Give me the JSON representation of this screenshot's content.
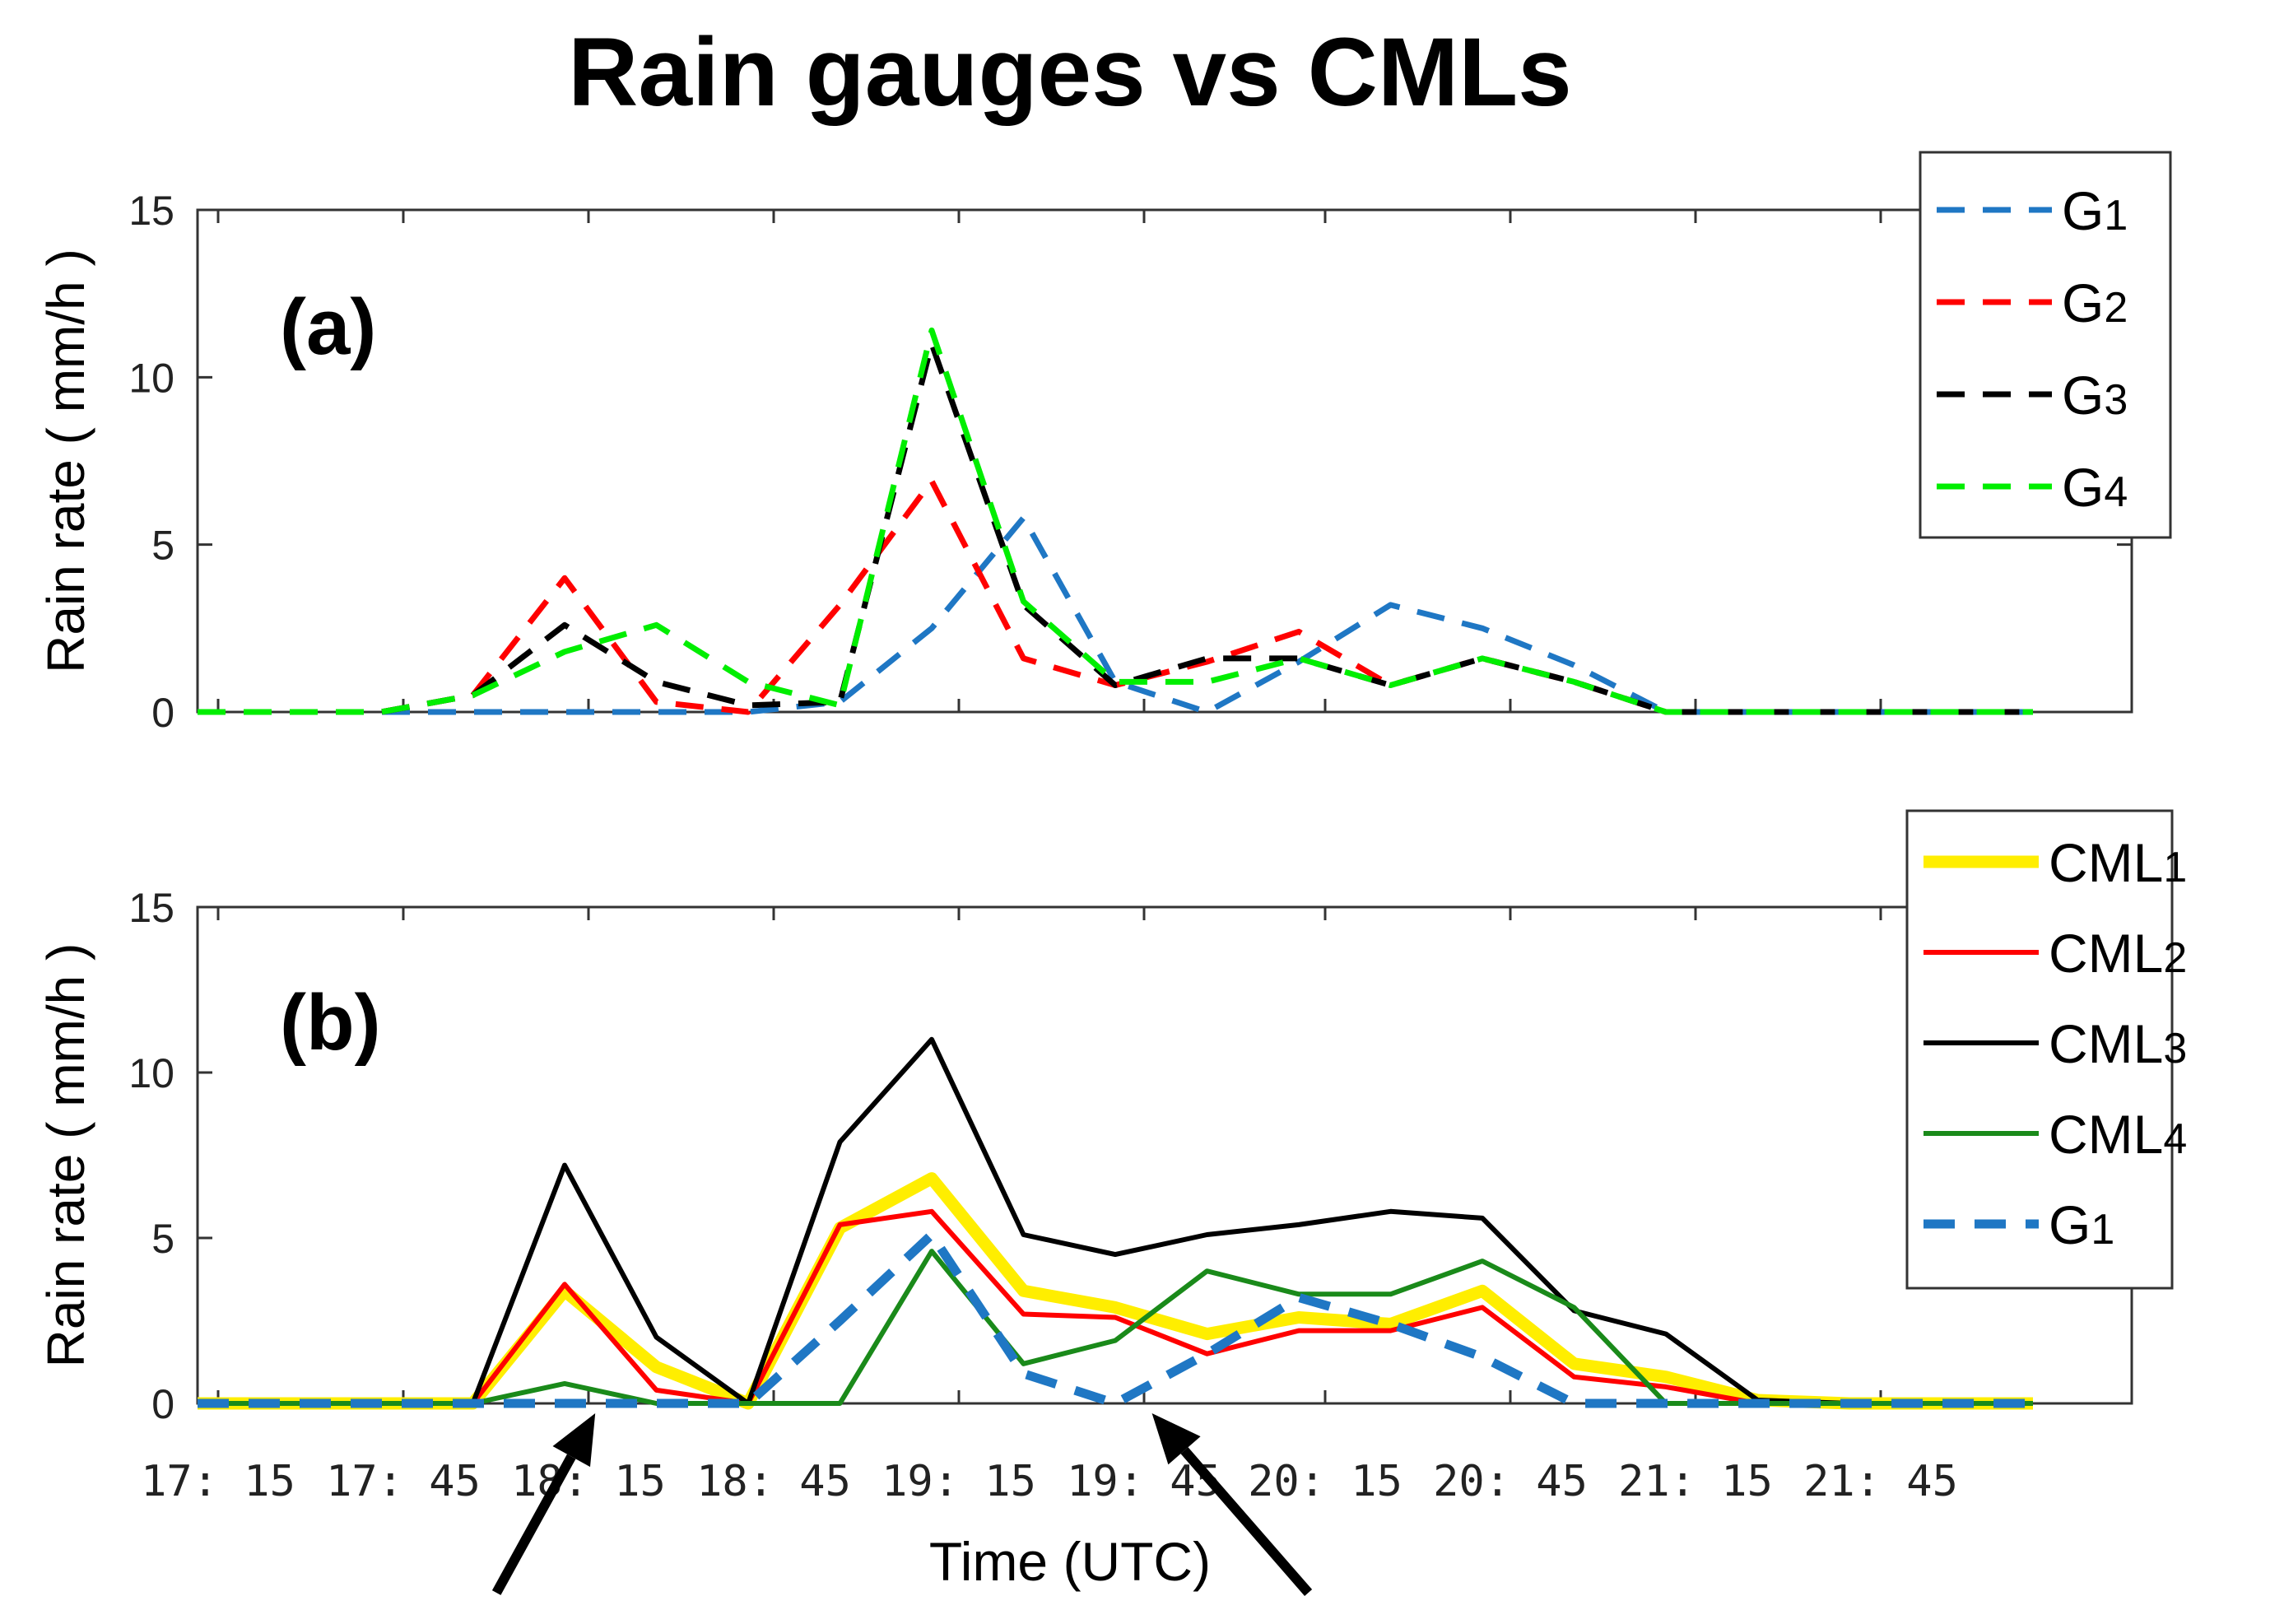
{
  "title": "Rain gauges vs CMLs",
  "colors": {
    "G1": "#1f77c4",
    "G2": "#ff0000",
    "G3": "#000000",
    "G4": "#00ee00",
    "CML1": "#ffee00",
    "CML2": "#ff0000",
    "CML3": "#000000",
    "CML4": "#1a8a1a",
    "arrow": "#000000"
  },
  "chart_data": [
    {
      "type": "line",
      "panel_label": "(a)",
      "title": "",
      "xlabel": "",
      "ylabel": "Rain rate ( mm/h )",
      "ylim": [
        0,
        15
      ],
      "yticks": [
        0,
        5,
        10,
        15
      ],
      "xticks": [
        "17: 15",
        "17: 45",
        "18: 15",
        "18: 45",
        "19: 15",
        "19: 45",
        "20: 15",
        "20: 45",
        "21: 15",
        "21: 45"
      ],
      "legend_position": "top-right",
      "x": [
        "17:00",
        "17:15",
        "17:30",
        "17:45",
        "18:00",
        "18:15",
        "18:30",
        "18:45",
        "19:00",
        "19:15",
        "19:30",
        "19:45",
        "20:00",
        "20:15",
        "20:30",
        "20:45",
        "21:00",
        "21:15",
        "21:30",
        "21:45",
        "22:00"
      ],
      "series": [
        {
          "name": "G1",
          "label_main": "G",
          "label_sub": "1",
          "style": "dashed",
          "values": [
            0,
            0,
            0,
            0,
            0,
            0,
            0,
            0.3,
            2.5,
            5.8,
            0.9,
            0,
            1.5,
            3.2,
            2.5,
            1.4,
            0,
            0,
            0,
            0,
            0
          ]
        },
        {
          "name": "G2",
          "label_main": "G",
          "label_sub": "2",
          "style": "dashed",
          "values": [
            0,
            0,
            0,
            0.5,
            4,
            0.3,
            0,
            3.2,
            6.9,
            1.6,
            0.8,
            1.5,
            2.4,
            0.8,
            1.6,
            0.9,
            0,
            0,
            0,
            0,
            0
          ]
        },
        {
          "name": "G3",
          "label_main": "G",
          "label_sub": "3",
          "style": "dashed",
          "values": [
            0,
            0,
            0,
            0.5,
            2.6,
            0.9,
            0.2,
            0.3,
            11,
            3.2,
            0.8,
            1.6,
            1.6,
            0.8,
            1.6,
            0.9,
            0,
            0,
            0,
            0,
            0
          ]
        },
        {
          "name": "G4",
          "label_main": "G",
          "label_sub": "4",
          "style": "dashed",
          "values": [
            0,
            0,
            0,
            0.5,
            1.8,
            2.6,
            0.9,
            0.2,
            11.4,
            3.3,
            0.9,
            0.9,
            1.6,
            0.8,
            1.6,
            0.9,
            0,
            0,
            0,
            0,
            0
          ]
        }
      ]
    },
    {
      "type": "line",
      "panel_label": "(b)",
      "title": "",
      "xlabel": "Time (UTC)",
      "ylabel": "Rain rate ( mm/h )",
      "ylim": [
        0,
        15
      ],
      "yticks": [
        0,
        5,
        10,
        15
      ],
      "xticks": [
        "17: 15",
        "17: 45",
        "18: 15",
        "18: 45",
        "19: 15",
        "19: 45",
        "20: 15",
        "20: 45",
        "21: 15",
        "21: 45"
      ],
      "legend_position": "top-right",
      "x": [
        "17:00",
        "17:15",
        "17:30",
        "17:45",
        "18:00",
        "18:15",
        "18:30",
        "18:45",
        "19:00",
        "19:15",
        "19:30",
        "19:45",
        "20:00",
        "20:15",
        "20:30",
        "20:45",
        "21:00",
        "21:15",
        "21:30",
        "21:45",
        "22:00"
      ],
      "series": [
        {
          "name": "CML1",
          "label_main": "CML",
          "label_sub": "1",
          "style": "solid-thick",
          "values": [
            0,
            0,
            0,
            0,
            3.4,
            1.1,
            0,
            5.3,
            6.8,
            3.4,
            2.9,
            2.1,
            2.6,
            2.4,
            3.4,
            1.2,
            0.8,
            0.1,
            0,
            0,
            0
          ]
        },
        {
          "name": "CML2",
          "label_main": "CML",
          "label_sub": "2",
          "style": "solid",
          "values": [
            0,
            0,
            0,
            0,
            3.6,
            0.4,
            0,
            5.4,
            5.8,
            2.7,
            2.6,
            1.5,
            2.2,
            2.2,
            2.9,
            0.8,
            0.5,
            0,
            0,
            0,
            0
          ]
        },
        {
          "name": "CML3",
          "label_main": "CML",
          "label_sub": "3",
          "style": "solid",
          "values": [
            0,
            0,
            0,
            0,
            7.2,
            2,
            0,
            7.9,
            11,
            5.1,
            4.5,
            5.1,
            5.4,
            5.8,
            5.6,
            2.8,
            2.1,
            0.1,
            0,
            0,
            0
          ]
        },
        {
          "name": "CML4",
          "label_main": "CML",
          "label_sub": "4",
          "style": "solid",
          "values": [
            0,
            0,
            0,
            0,
            0.6,
            0,
            0,
            0,
            4.6,
            1.2,
            1.9,
            4,
            3.3,
            3.3,
            4.3,
            2.9,
            0,
            0,
            0,
            0,
            0
          ]
        },
        {
          "name": "G1",
          "label_main": "G",
          "label_sub": "1",
          "style": "dashed-thick",
          "values": [
            0,
            0,
            0,
            0,
            0,
            0,
            0,
            2.5,
            5.1,
            0.9,
            0,
            1.5,
            3.2,
            2.4,
            1.4,
            0,
            0,
            0,
            0,
            0,
            0
          ]
        }
      ],
      "annotations": [
        {
          "type": "arrow",
          "points_to_x": "18:05",
          "points_to_y": 0
        },
        {
          "type": "arrow",
          "points_to_x": "19:36",
          "points_to_y": 0
        }
      ]
    }
  ]
}
